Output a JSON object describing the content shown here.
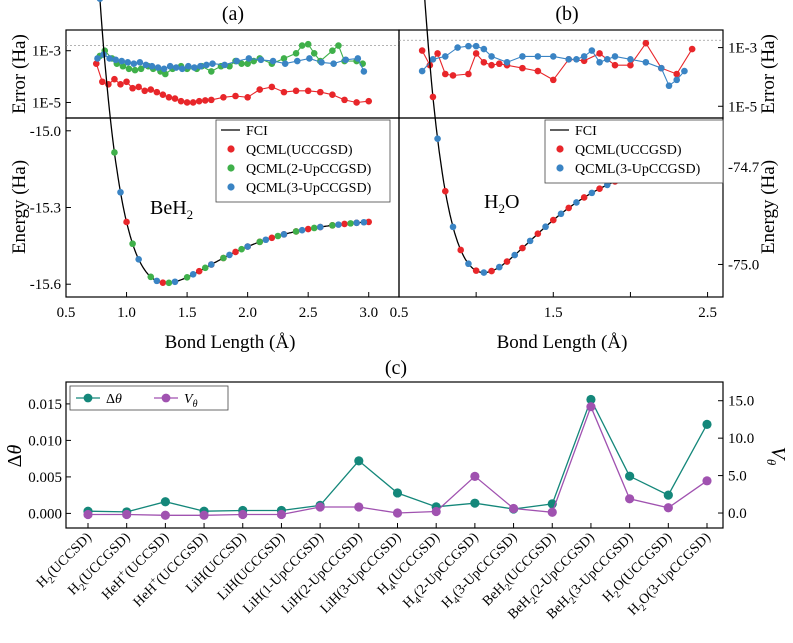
{
  "colors": {
    "red": "#e8262a",
    "green": "#3fb04a",
    "blue": "#3a84c4",
    "teal": "#14877a",
    "purple": "#a052b0",
    "fci": "#000000"
  },
  "chart_data": [
    {
      "type": "scatter",
      "panel": "(a)",
      "molecule": {
        "main": "BeH",
        "sub": "2"
      },
      "xlabel": "Bond Length (Å)",
      "xlim": [
        0.5,
        3.25
      ],
      "xticks": [
        "0.5",
        "1.0",
        "1.5",
        "2.0",
        "2.5",
        "3.0"
      ],
      "error": {
        "ylabel": "Error (Ha)",
        "ylim_log10": [
          -5.6,
          -2.2
        ],
        "yticks": [
          {
            "label": "1E-3",
            "log": -3
          },
          {
            "label": "1E-5",
            "log": -5
          }
        ],
        "threshold_log10": -2.8,
        "series": [
          {
            "name": "QCML(UCCGSD)",
            "color": "red",
            "x": [
              0.75,
              0.8,
              0.85,
              0.9,
              0.95,
              1.0,
              1.05,
              1.1,
              1.15,
              1.2,
              1.25,
              1.3,
              1.35,
              1.4,
              1.45,
              1.5,
              1.55,
              1.6,
              1.65,
              1.7,
              1.8,
              1.9,
              2.0,
              2.1,
              2.2,
              2.3,
              2.4,
              2.5,
              2.6,
              2.7,
              2.8,
              2.9,
              3.0
            ],
            "logy": [
              -3.5,
              -4.2,
              -4.3,
              -4.1,
              -4.3,
              -4.2,
              -4.45,
              -4.4,
              -4.55,
              -4.5,
              -4.6,
              -4.7,
              -4.8,
              -4.85,
              -4.95,
              -5.0,
              -5.0,
              -4.95,
              -4.92,
              -4.9,
              -4.8,
              -4.75,
              -4.8,
              -4.5,
              -4.4,
              -4.6,
              -4.55,
              -4.55,
              -4.6,
              -4.7,
              -4.9,
              -5.0,
              -4.95
            ]
          },
          {
            "name": "QCML(2-UpCCGSD)",
            "color": "green",
            "x": [
              0.78,
              0.82,
              0.88,
              0.92,
              0.97,
              1.02,
              1.07,
              1.12,
              1.18,
              1.22,
              1.28,
              1.32,
              1.38,
              1.45,
              1.5,
              1.58,
              1.62,
              1.7,
              1.78,
              1.85,
              1.9,
              1.95,
              2.0,
              2.05,
              2.1,
              2.2,
              2.3,
              2.4,
              2.45,
              2.5,
              2.55,
              2.6,
              2.7,
              2.75,
              2.8,
              2.9,
              2.95
            ],
            "logy": [
              -3.2,
              -3.0,
              -3.3,
              -3.5,
              -3.6,
              -3.7,
              -3.75,
              -3.7,
              -3.6,
              -3.7,
              -3.8,
              -3.9,
              -3.7,
              -3.6,
              -3.7,
              -3.7,
              -3.6,
              -3.8,
              -3.6,
              -3.6,
              -3.4,
              -3.5,
              -3.5,
              -3.4,
              -3.3,
              -3.5,
              -3.3,
              -3.1,
              -2.8,
              -2.75,
              -3.1,
              -3.4,
              -3.0,
              -2.8,
              -3.4,
              -3.4,
              -3.5
            ]
          },
          {
            "name": "QCML(3-UpCCGSD)",
            "color": "blue",
            "x": [
              0.76,
              0.81,
              0.86,
              0.91,
              0.96,
              1.01,
              1.06,
              1.11,
              1.16,
              1.21,
              1.26,
              1.31,
              1.36,
              1.41,
              1.46,
              1.51,
              1.56,
              1.61,
              1.66,
              1.71,
              1.81,
              1.91,
              2.01,
              2.11,
              2.21,
              2.31,
              2.41,
              2.51,
              2.61,
              2.71,
              2.81,
              2.91,
              2.96
            ],
            "logy": [
              -3.3,
              -3.15,
              -3.3,
              -3.35,
              -3.4,
              -3.45,
              -3.5,
              -3.45,
              -3.55,
              -3.6,
              -3.65,
              -3.7,
              -3.6,
              -3.65,
              -3.7,
              -3.6,
              -3.65,
              -3.6,
              -3.55,
              -3.5,
              -3.55,
              -3.4,
              -3.3,
              -3.35,
              -3.4,
              -3.5,
              -3.4,
              -3.3,
              -3.45,
              -3.5,
              -3.35,
              -3.3,
              -3.8
            ]
          }
        ]
      },
      "energy": {
        "ylabel": "Energy (Ha)",
        "ylim": [
          -15.65,
          -14.95
        ],
        "yticks": [
          "-15.0",
          "-15.3",
          "-15.6"
        ],
        "yticks_values": [
          -15.0,
          -15.3,
          -15.6
        ],
        "fci_label": "FCI",
        "legend": [
          "FCI",
          "QCML(UCCGSD)",
          "QCML(2-UpCCGSD)",
          "QCML(3-UpCCGSD)"
        ],
        "red_x": [
          0.75,
          1.0,
          1.3,
          1.6,
          1.7,
          1.8,
          1.9,
          2.0,
          2.1,
          2.2,
          2.3,
          2.4,
          2.5,
          2.6,
          2.7,
          2.8,
          2.9,
          3.0
        ],
        "green_x": [
          0.9,
          1.05,
          1.2,
          1.35,
          1.5,
          1.65,
          1.8,
          1.95,
          2.1,
          2.25,
          2.4,
          2.55,
          2.7,
          2.85
        ],
        "blue_x": [
          0.78,
          0.95,
          1.1,
          1.25,
          1.4,
          1.55,
          1.7,
          1.85,
          2.0,
          2.15,
          2.3,
          2.45,
          2.6,
          2.75,
          2.9,
          2.96
        ]
      }
    },
    {
      "type": "scatter",
      "panel": "(b)",
      "molecule": {
        "main": "H",
        "sub": "2",
        "tail": "O"
      },
      "xlabel": "Bond Length (Å)",
      "xlim": [
        0.5,
        2.6
      ],
      "xticks": [
        "0.5",
        "1.0",
        "1.5",
        "2.0",
        "2.5"
      ],
      "xtick_labels_shown": [
        "0.5",
        "1.5",
        "2.5"
      ],
      "error": {
        "ylabel": "Error (Ha)",
        "ylim_log10": [
          -5.4,
          -2.4
        ],
        "yticks": [
          {
            "label": "1E-3",
            "log": -3
          },
          {
            "label": "1E-5",
            "log": -5
          }
        ],
        "threshold_log10": -2.75,
        "series": [
          {
            "name": "QCML(UCCGSD)",
            "color": "red",
            "x": [
              0.65,
              0.7,
              0.75,
              0.8,
              0.85,
              0.95,
              1.0,
              1.05,
              1.1,
              1.15,
              1.2,
              1.3,
              1.4,
              1.5,
              1.6,
              1.7,
              1.8,
              1.9,
              2.0,
              2.1,
              2.2,
              2.3,
              2.4
            ],
            "logy": [
              -3.1,
              -3.6,
              -3.2,
              -3.9,
              -3.95,
              -3.9,
              -3.2,
              -3.5,
              -3.6,
              -3.55,
              -3.6,
              -3.7,
              -3.8,
              -4.1,
              -3.4,
              -3.45,
              -3.2,
              -3.6,
              -3.6,
              -2.85,
              -3.7,
              -3.9,
              -3.05
            ]
          },
          {
            "name": "QCML(3-UpCCGSD)",
            "color": "blue",
            "x": [
              0.65,
              0.72,
              0.8,
              0.88,
              0.95,
              1.0,
              1.05,
              1.1,
              1.2,
              1.3,
              1.4,
              1.5,
              1.6,
              1.65,
              1.7,
              1.75,
              1.8,
              1.85,
              1.9,
              2.0,
              2.1,
              2.2,
              2.25,
              2.3,
              2.35
            ],
            "logy": [
              -3.8,
              -3.4,
              -3.3,
              -3.0,
              -2.95,
              -2.95,
              -3.05,
              -3.3,
              -3.5,
              -3.3,
              -3.3,
              -3.3,
              -3.4,
              -3.4,
              -3.3,
              -3.1,
              -3.5,
              -3.4,
              -3.3,
              -3.4,
              -3.5,
              -3.7,
              -4.3,
              -4.1,
              -3.8
            ]
          }
        ]
      },
      "energy": {
        "ylabel": "Energy (Ha)",
        "ylim": [
          -75.1,
          -74.55
        ],
        "yticks": [
          "-74.7",
          "-75.0"
        ],
        "yticks_values": [
          -74.7,
          -75.0
        ],
        "legend": [
          "FCI",
          "QCML(UCCGSD)",
          "QCML(3-UpCCGSD)"
        ],
        "red_x": [
          0.65,
          0.72,
          0.8,
          0.9,
          1.0,
          1.1,
          1.2,
          1.3,
          1.4,
          1.5,
          1.6,
          1.7,
          1.8,
          1.9,
          2.0,
          2.1,
          2.2,
          2.3
        ],
        "blue_x": [
          0.66,
          0.75,
          0.85,
          0.95,
          1.05,
          1.15,
          1.25,
          1.35,
          1.45,
          1.55,
          1.65,
          1.75,
          1.85,
          1.95,
          2.05,
          2.15,
          2.25,
          2.35,
          2.4
        ]
      }
    },
    {
      "type": "line",
      "panel": "(c)",
      "categories": [
        {
          "pre": "H",
          "sub": "2",
          "post": "(UCCSD)"
        },
        {
          "pre": "H",
          "sub": "2",
          "post": "(UCCGSD)"
        },
        {
          "pre": "HeH",
          "sup": "+",
          "post": "(UCCSD)"
        },
        {
          "pre": "HeH",
          "sup": "+",
          "post": "(UCCGSD)"
        },
        {
          "pre": "LiH(UCCSD)"
        },
        {
          "pre": "LiH(UCCGSD)"
        },
        {
          "pre": "LiH(1-UpCCGSD)"
        },
        {
          "pre": "LiH(2-UpCCGSD)"
        },
        {
          "pre": "LiH(3-UpCCGSD)"
        },
        {
          "pre": "H",
          "sub": "4",
          "post": "(UCCGSD)"
        },
        {
          "pre": "H",
          "sub": "4",
          "post": "(2-UpCCGSD)"
        },
        {
          "pre": "H",
          "sub": "4",
          "post": "(3-UpCCGSD)"
        },
        {
          "pre": "BeH",
          "sub": "2",
          "post": "(UCCGSD)"
        },
        {
          "pre": "BeH",
          "sub": "2",
          "post": "(2-UpCCGSD)"
        },
        {
          "pre": "BeH",
          "sub": "2",
          "post": "(3-UpCCGSD)"
        },
        {
          "pre": "H",
          "sub": "2",
          "post": "O(UCCGSD)"
        },
        {
          "pre": "H",
          "sub": "2",
          "post": "O(3-UpCCGSD)"
        }
      ],
      "ylabel_left": {
        "main": "Δ",
        "italic": "θ"
      },
      "ylabel_right": {
        "main": "V",
        "sub": "θ"
      },
      "ylim_left": [
        -0.002,
        0.018
      ],
      "ylim_right": [
        -2.0,
        17.5
      ],
      "yticks_left": [
        "0.000",
        "0.005",
        "0.010",
        "0.015"
      ],
      "yticks_left_values": [
        0.0,
        0.005,
        0.01,
        0.015
      ],
      "yticks_right": [
        "0.0",
        "5.0",
        "10.0",
        "15.0"
      ],
      "yticks_right_values": [
        0.0,
        5.0,
        10.0,
        15.0
      ],
      "series": [
        {
          "name": "Δθ",
          "label_main": "Δ",
          "label_italic": "θ",
          "color": "teal",
          "axis": "left",
          "values": [
            0.0003,
            0.0002,
            0.0016,
            0.0003,
            0.0004,
            0.0004,
            0.0011,
            0.0072,
            0.0028,
            0.0009,
            0.0014,
            0.0006,
            0.0013,
            0.0156,
            0.0051,
            0.0025,
            0.0122
          ]
        },
        {
          "name": "Vθ",
          "label_main": "V",
          "label_sub": "θ",
          "color": "purple",
          "axis": "right",
          "values": [
            -0.2,
            -0.2,
            -0.3,
            -0.3,
            -0.2,
            -0.2,
            0.8,
            0.8,
            0.0,
            0.2,
            4.9,
            0.6,
            0.1,
            14.2,
            1.9,
            0.7,
            4.3
          ]
        }
      ]
    }
  ]
}
